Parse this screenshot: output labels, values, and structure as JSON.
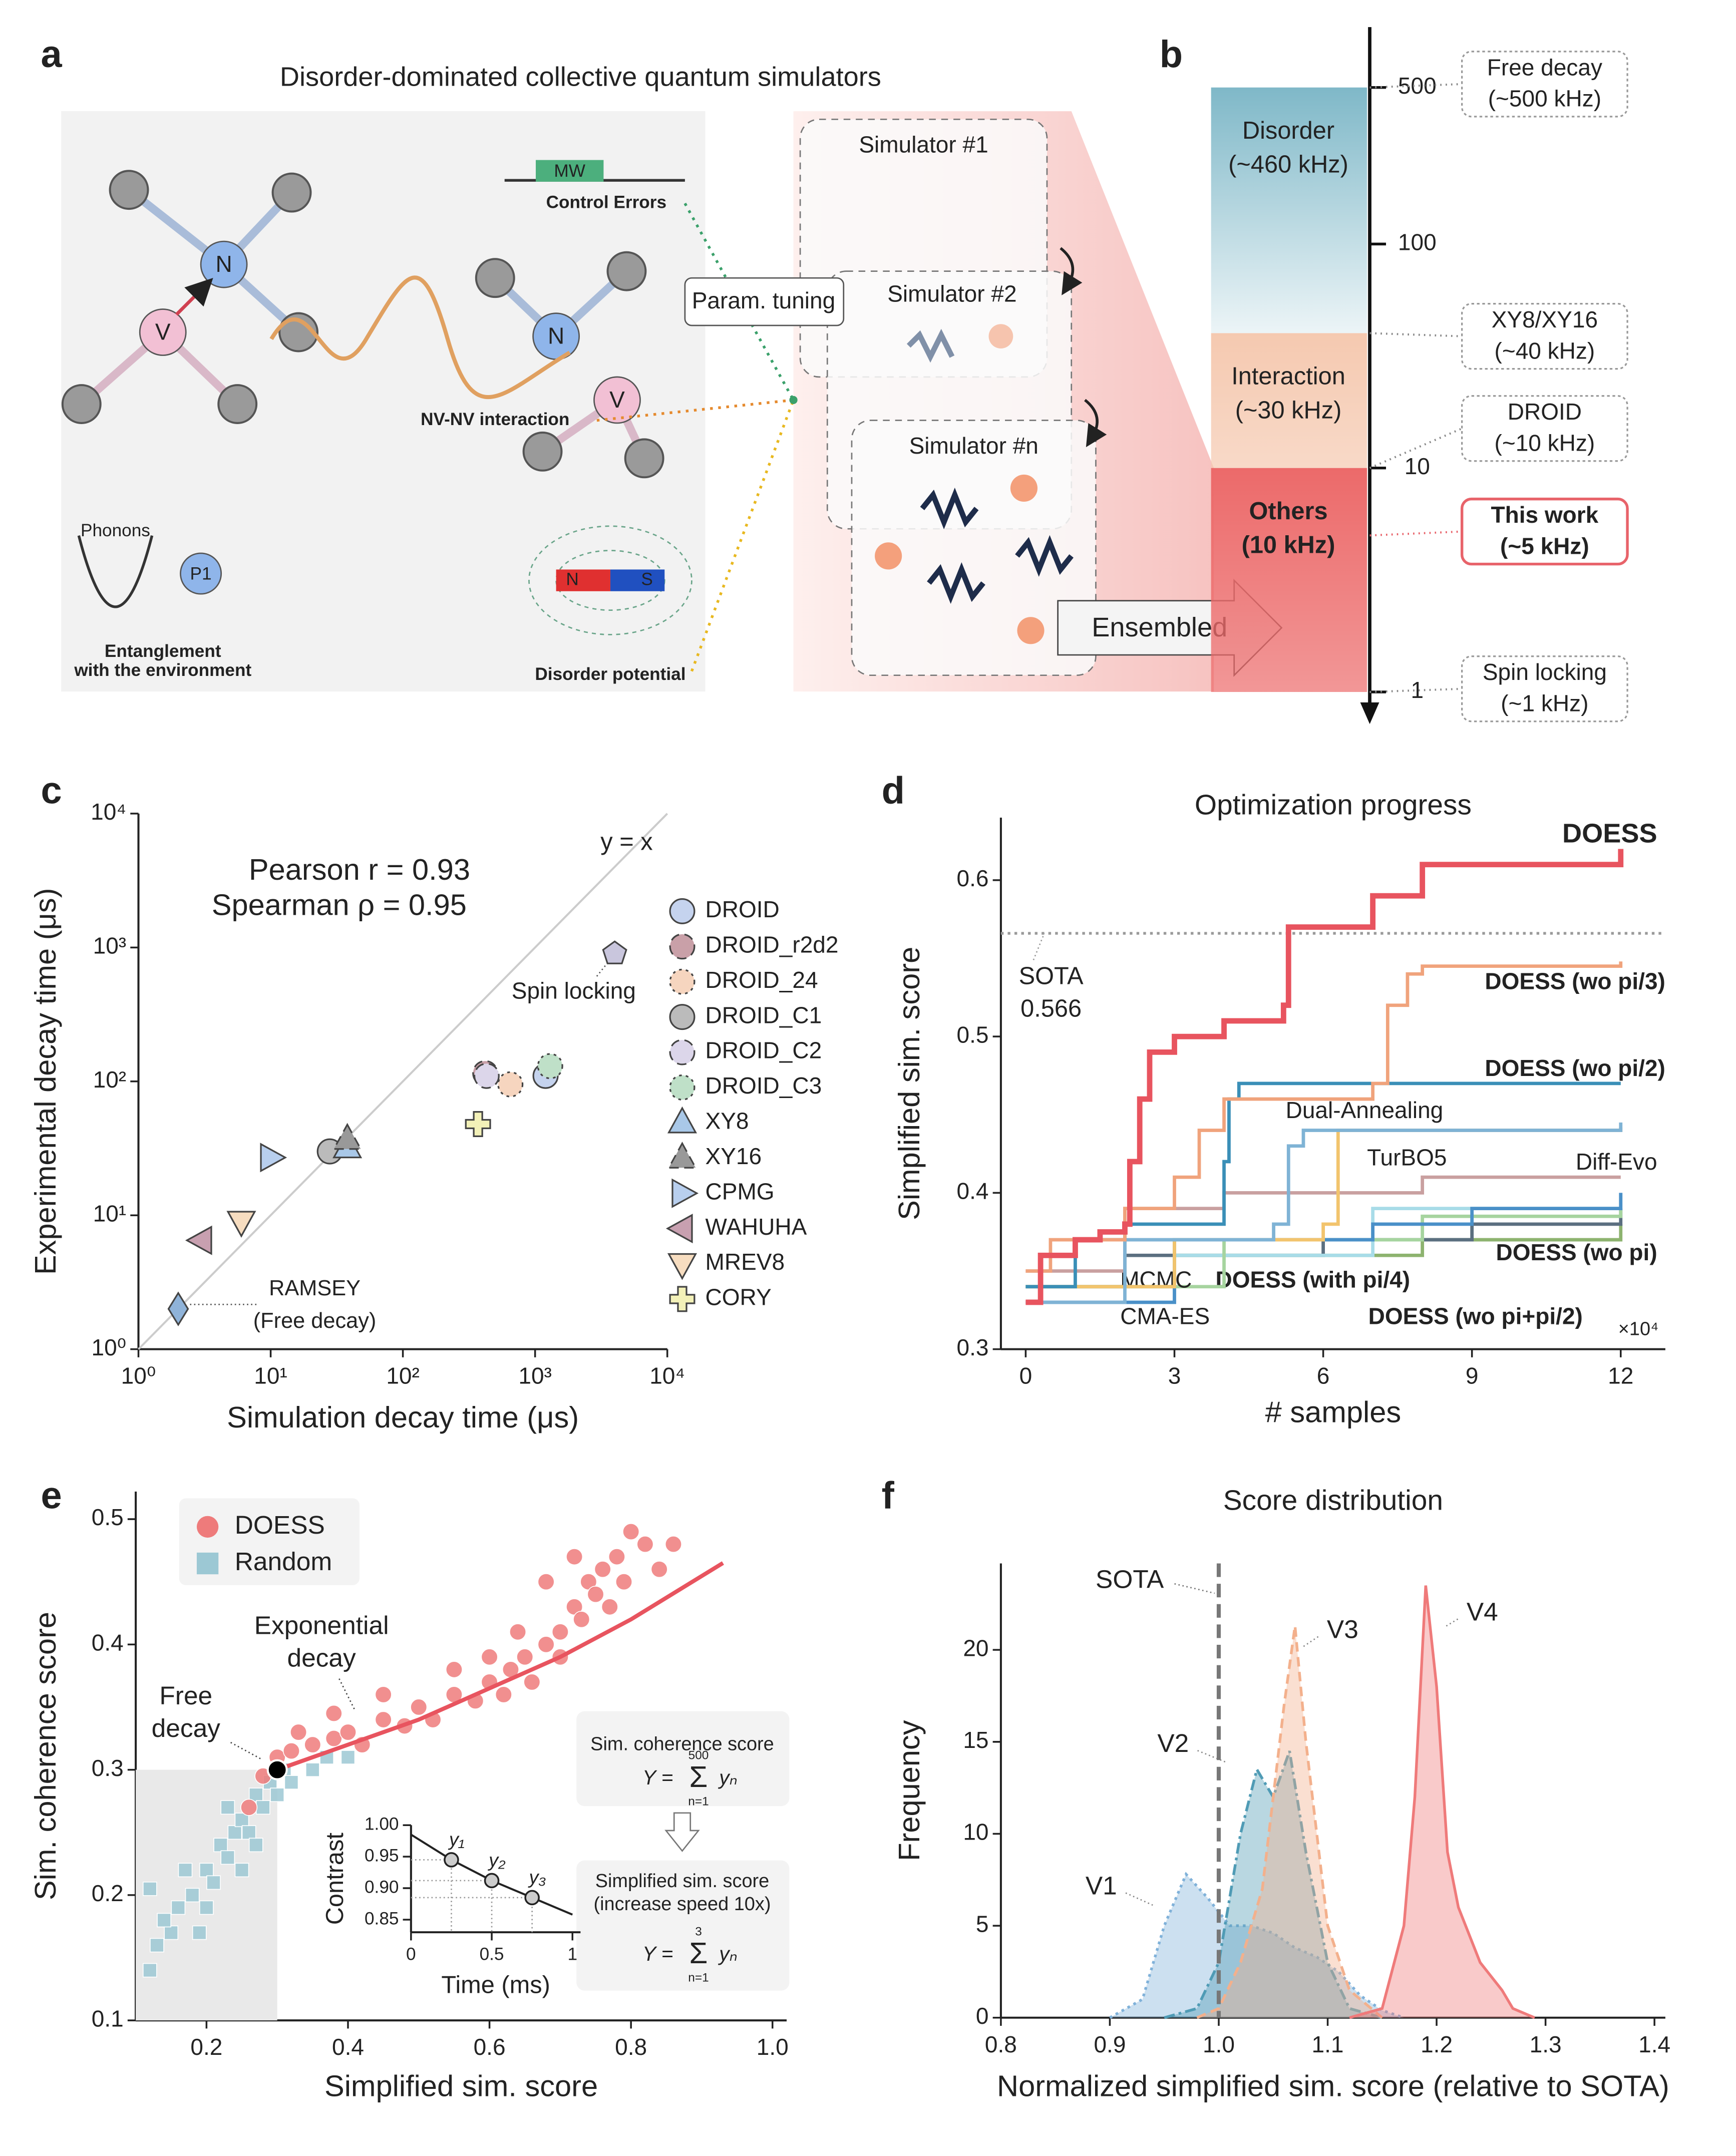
{
  "figure_labels": [
    "a",
    "b",
    "c",
    "d",
    "e",
    "f"
  ],
  "diagram": {
    "title": "Disorder-dominated collective quantum simulators",
    "mw": "MW",
    "control_errors": "Control Errors",
    "nv": [
      "N",
      "V",
      "N",
      "V"
    ],
    "nv_interaction": "NV-NV interaction",
    "phonons": "Phonons",
    "p1": "P1",
    "entanglement": [
      "Entanglement",
      "with the environment"
    ],
    "magnet": [
      "N",
      "S"
    ],
    "disorder_potential": "Disorder potential",
    "param_tuning": "Param. tuning",
    "simulators": [
      "Simulator #1",
      "Simulator #2",
      "Simulator #n"
    ],
    "ensembled": "Ensembled"
  },
  "chart_data": [
    {
      "type": "scale",
      "log_y": true,
      "ylim": [
        0.76,
        930
      ],
      "yticks": [
        1,
        10,
        100,
        500
      ],
      "bands": [
        {
          "name": "Disorder",
          "note": "(~460 kHz)",
          "range": [
            40,
            500
          ],
          "color": "#7fb8c8"
        },
        {
          "name": "Interaction",
          "note": "(~30 kHz)",
          "range": [
            10,
            40
          ],
          "color": "#f5c9b0"
        },
        {
          "name": "Others",
          "note": "(10 kHz)",
          "range": [
            1,
            10
          ],
          "color": "#ec6a6a"
        }
      ],
      "callouts": [
        {
          "name": "Free decay",
          "note": "(~500 kHz)",
          "value": 500
        },
        {
          "name": "XY8/XY16",
          "note": "(~40 kHz)",
          "value": 40
        },
        {
          "name": "DROID",
          "note": "(~10 kHz)",
          "value": 10
        },
        {
          "name": "This work",
          "note": "(~5 kHz)",
          "value": 5,
          "color": "#e8636a"
        },
        {
          "name": "Spin locking",
          "note": "(~1 kHz)",
          "value": 1
        }
      ]
    },
    {
      "type": "scatter",
      "log_x": true,
      "log_y": true,
      "xlim": [
        1,
        10000
      ],
      "ylim": [
        1,
        10000
      ],
      "xticks": [
        {
          "value": 1,
          "label": "10⁰"
        },
        {
          "value": 10,
          "label": "10¹"
        },
        {
          "value": 100,
          "label": "10²"
        },
        {
          "value": 1000,
          "label": "10³"
        },
        {
          "value": 10000,
          "label": "10⁴"
        }
      ],
      "yticks": [
        {
          "value": 1,
          "label": "10⁰"
        },
        {
          "value": 10,
          "label": "10¹"
        },
        {
          "value": 100,
          "label": "10²"
        },
        {
          "value": 1000,
          "label": "10³"
        },
        {
          "value": 10000,
          "label": "10⁴"
        }
      ],
      "xlabel": "Simulation decay time (μs)",
      "ylabel": "Experimental decay time (μs)",
      "annotations": [
        "Pearson r = 0.93",
        "Spearman ρ = 0.95",
        "y = x",
        "Spin locking",
        "RAMSEY",
        "(Free decay)"
      ],
      "series": [
        {
          "name": "DROID",
          "marker": "circle",
          "color": "#c5d3ee",
          "x": [
            1200
          ],
          "values": [
            110
          ]
        },
        {
          "name": "DROID_r2d2",
          "marker": "circle",
          "color": "#c9a0a8",
          "line_style": "dashed",
          "x": [
            420
          ],
          "values": [
            115
          ]
        },
        {
          "name": "DROID_24",
          "marker": "circle",
          "color": "#f6d5bf",
          "line_style": "dotted",
          "x": [
            650
          ],
          "values": [
            95
          ]
        },
        {
          "name": "DROID_C1",
          "marker": "circle",
          "color": "#bbbbbb",
          "x": [
            28
          ],
          "values": [
            30
          ]
        },
        {
          "name": "DROID_C2",
          "marker": "circle",
          "color": "#dcd6ea",
          "line_style": "dashed",
          "x": [
            430
          ],
          "values": [
            110
          ]
        },
        {
          "name": "DROID_C3",
          "marker": "circle",
          "color": "#bfe0c8",
          "line_style": "dotted",
          "x": [
            1300
          ],
          "values": [
            130
          ]
        },
        {
          "name": "XY8",
          "marker": "triangle-up",
          "color": "#a9c8e8",
          "x": [
            38
          ],
          "values": [
            32
          ]
        },
        {
          "name": "XY16",
          "marker": "triangle-up",
          "color": "#999999",
          "line_style": "dashed",
          "x": [
            38
          ],
          "values": [
            37
          ]
        },
        {
          "name": "CPMG",
          "marker": "triangle-right",
          "color": "#b8cfee",
          "x": [
            10
          ],
          "values": [
            27
          ]
        },
        {
          "name": "WAHUHA",
          "marker": "triangle-left",
          "color": "#c8a0b0",
          "x": [
            3
          ],
          "values": [
            6.5
          ]
        },
        {
          "name": "MREV8",
          "marker": "triangle-down",
          "color": "#f7ddc0",
          "x": [
            6
          ],
          "values": [
            9
          ]
        },
        {
          "name": "CORY",
          "marker": "plus",
          "color": "#f3f1b8",
          "x": [
            370
          ],
          "values": [
            48
          ]
        },
        {
          "marker": "diamond",
          "color": "#8fb3d9",
          "x": [
            2
          ],
          "values": [
            2
          ]
        },
        {
          "marker": "pentagon",
          "color": "#c9c6dd",
          "x": [
            4000
          ],
          "values": [
            900
          ]
        }
      ]
    },
    {
      "type": "line",
      "step": true,
      "title": "Optimization progress",
      "xlabel": "# samples",
      "ylabel": "Simplified sim. score",
      "x_multiplier": "×10⁴",
      "xlim": [
        -0.5,
        12.9
      ],
      "ylim": [
        0.3,
        0.64
      ],
      "xticks": [
        0,
        3,
        6,
        9,
        12
      ],
      "yticks": [
        0.3,
        0.4,
        0.5,
        0.6
      ],
      "reference": {
        "name": "SOTA",
        "value": 0.566
      },
      "series": [
        {
          "name": "DOESS",
          "color": "#e8545f",
          "line_width": 4,
          "x": [
            0,
            0.3,
            1,
            1.5,
            2,
            2.1,
            2.3,
            2.5,
            3,
            4,
            5.2,
            5.3,
            6,
            7,
            8,
            11.8,
            12
          ],
          "values": [
            0.33,
            0.36,
            0.37,
            0.375,
            0.38,
            0.42,
            0.46,
            0.49,
            0.5,
            0.51,
            0.52,
            0.57,
            0.57,
            0.59,
            0.61,
            0.61,
            0.62
          ]
        },
        {
          "name": "DOESS (wo pi/3)",
          "color": "#f0a37c",
          "x": [
            0,
            0.5,
            2,
            3,
            3.5,
            4,
            6,
            7,
            7.3,
            7.7,
            8,
            12
          ],
          "values": [
            0.35,
            0.37,
            0.39,
            0.41,
            0.44,
            0.46,
            0.46,
            0.47,
            0.52,
            0.54,
            0.545,
            0.548
          ]
        },
        {
          "name": "DOESS (wo pi/2)",
          "color": "#3a8fb7",
          "x": [
            0,
            1,
            2,
            3.5,
            4,
            4.1,
            4.3,
            12
          ],
          "values": [
            0.34,
            0.37,
            0.38,
            0.38,
            0.42,
            0.46,
            0.47,
            0.47
          ]
        },
        {
          "name": "Dual-Annealing",
          "color": "#7fb3d5",
          "x": [
            0,
            2,
            5,
            5.3,
            5.6,
            12
          ],
          "values": [
            0.33,
            0.37,
            0.38,
            0.43,
            0.44,
            0.445
          ]
        },
        {
          "name": "TurBO5",
          "color": "#f2c46d",
          "x": [
            0,
            3,
            6,
            6.3,
            12
          ],
          "values": [
            0.34,
            0.37,
            0.38,
            0.44,
            0.442
          ]
        },
        {
          "name": "Diff-Evo",
          "color": "#c9a0a0",
          "x": [
            0,
            2,
            4,
            8,
            12
          ],
          "values": [
            0.35,
            0.39,
            0.4,
            0.41,
            0.41
          ]
        },
        {
          "name": "DOESS (wo pi)",
          "color": "#4a90c8",
          "x": [
            0,
            3,
            7,
            9,
            12
          ],
          "values": [
            0.33,
            0.37,
            0.38,
            0.39,
            0.4
          ]
        },
        {
          "name": "MCMC",
          "color": "#a6d49f",
          "x": [
            0,
            4,
            8,
            12
          ],
          "values": [
            0.34,
            0.37,
            0.385,
            0.39
          ]
        },
        {
          "name": "CMA-ES",
          "color": "#a8dce8",
          "x": [
            0,
            3,
            7,
            12
          ],
          "values": [
            0.33,
            0.36,
            0.39,
            0.4
          ]
        },
        {
          "name": "DOESS (with pi/4)",
          "color": "#5b6f80",
          "x": [
            0,
            2,
            6,
            9,
            12
          ],
          "values": [
            0.34,
            0.36,
            0.37,
            0.38,
            0.39
          ]
        },
        {
          "name": "DOESS (wo pi+pi/2)",
          "color": "#8db36f",
          "x": [
            0,
            3,
            8,
            12
          ],
          "values": [
            0.34,
            0.36,
            0.37,
            0.38
          ]
        }
      ]
    },
    {
      "type": "scatter",
      "xlabel": "Simplified sim. score",
      "ylabel": "Sim. coherence score",
      "xlim": [
        0.1,
        1.02
      ],
      "ylim": [
        0.1,
        0.522
      ],
      "xticks": [
        0.2,
        0.4,
        0.6,
        0.8,
        {
          "value": 1,
          "label": "1.0"
        }
      ],
      "yticks": [
        0.1,
        0.2,
        0.3,
        0.4,
        0.5
      ],
      "shaded": {
        "x": [
          0.1,
          0.3
        ],
        "y": [
          0.1,
          0.3
        ]
      },
      "series": [
        {
          "name": "Random",
          "color": "#9cc8d4",
          "marker": "square",
          "x": [
            0.12,
            0.13,
            0.15,
            0.16,
            0.18,
            0.2,
            0.21,
            0.22,
            0.23,
            0.24,
            0.25,
            0.26,
            0.27,
            0.28,
            0.29,
            0.3,
            0.31,
            0.32,
            0.35,
            0.37,
            0.4,
            0.14,
            0.17,
            0.19,
            0.23,
            0.25,
            0.27,
            0.2,
            0.12
          ],
          "values": [
            0.14,
            0.16,
            0.17,
            0.19,
            0.2,
            0.22,
            0.21,
            0.24,
            0.23,
            0.25,
            0.26,
            0.25,
            0.28,
            0.27,
            0.29,
            0.28,
            0.3,
            0.29,
            0.3,
            0.31,
            0.31,
            0.18,
            0.22,
            0.17,
            0.27,
            0.22,
            0.24,
            0.19,
            0.205
          ]
        },
        {
          "name": "DOESS",
          "color": "#ee7b7b",
          "marker": "circle",
          "x": [
            0.28,
            0.3,
            0.32,
            0.35,
            0.38,
            0.4,
            0.42,
            0.45,
            0.48,
            0.5,
            0.52,
            0.55,
            0.58,
            0.6,
            0.62,
            0.63,
            0.65,
            0.66,
            0.68,
            0.7,
            0.7,
            0.72,
            0.73,
            0.74,
            0.75,
            0.76,
            0.77,
            0.78,
            0.8,
            0.82,
            0.84,
            0.86,
            0.72,
            0.68,
            0.55,
            0.45,
            0.38,
            0.33,
            0.26,
            0.6,
            0.79,
            0.64
          ],
          "values": [
            0.295,
            0.31,
            0.315,
            0.32,
            0.325,
            0.33,
            0.32,
            0.34,
            0.335,
            0.35,
            0.34,
            0.36,
            0.355,
            0.37,
            0.36,
            0.38,
            0.39,
            0.37,
            0.4,
            0.41,
            0.39,
            0.43,
            0.42,
            0.45,
            0.44,
            0.46,
            0.43,
            0.47,
            0.49,
            0.48,
            0.46,
            0.48,
            0.47,
            0.45,
            0.38,
            0.36,
            0.345,
            0.33,
            0.27,
            0.39,
            0.45,
            0.41
          ]
        }
      ],
      "fit": {
        "color": "#e8545f",
        "x": [
          0.3,
          0.4,
          0.5,
          0.6,
          0.7,
          0.8,
          0.93
        ],
        "values": [
          0.3,
          0.32,
          0.34,
          0.365,
          0.39,
          0.42,
          0.465
        ]
      },
      "highlight": {
        "x": 0.3,
        "value": 0.3,
        "color": "#000000"
      },
      "annotations": [
        "Exponential",
        "decay",
        "Free",
        "decay"
      ],
      "formula_box": {
        "coherence": "Sim. coherence score",
        "simplified": "Simplified sim. score",
        "speedup": "(increase speed 10x)",
        "expr": "Y =",
        "sum": "Σ",
        "term": "yₙ",
        "upper": [
          "500",
          "3"
        ],
        "lower": "n=1"
      }
    },
    {
      "type": "line",
      "xlabel": "Time (ms)",
      "ylabel": "Contrast",
      "xlim": [
        0,
        1.05
      ],
      "ylim": [
        0.83,
        1.0
      ],
      "xticks": [
        0,
        0.5,
        1
      ],
      "yticks": [
        0.85,
        {
          "value": 0.9,
          "label": "0.90"
        },
        0.95,
        {
          "value": 1,
          "label": "1.00"
        }
      ],
      "series": [
        {
          "color": "#222222",
          "x": [
            0,
            0.25,
            0.5,
            0.75,
            1
          ],
          "values": [
            0.985,
            0.945,
            0.912,
            0.885,
            0.858
          ]
        }
      ],
      "points": {
        "x": [
          0.25,
          0.5,
          0.75
        ],
        "values": [
          0.945,
          0.912,
          0.885
        ],
        "labels": [
          "y₁",
          "y₂",
          "y₃"
        ]
      }
    },
    {
      "type": "area",
      "title": "Score distribution",
      "xlabel": "Normalized simplified sim. score (relative to SOTA)",
      "ylabel": "Frequency",
      "xlim": [
        0.8,
        1.41
      ],
      "ylim": [
        0,
        24.7
      ],
      "xticks": [
        0.8,
        0.9,
        {
          "value": 1,
          "label": "1.0"
        },
        1.1,
        1.2,
        1.3,
        1.4
      ],
      "yticks": [
        0,
        5,
        10,
        15,
        20
      ],
      "reference": {
        "name": "SOTA",
        "value": 1
      },
      "series": [
        {
          "name": "V1",
          "color": "#7fb1d9",
          "line_style": "dotted",
          "x": [
            0.9,
            0.93,
            0.95,
            0.97,
            0.99,
            1.01,
            1.03,
            1.05,
            1.07,
            1.09,
            1.11,
            1.13,
            1.15,
            1.17
          ],
          "values": [
            0,
            1,
            5,
            7.8,
            6.5,
            5,
            5,
            4.6,
            3.8,
            3.3,
            2.5,
            1.2,
            0.4,
            0
          ]
        },
        {
          "name": "V2",
          "color": "#4f9bb5",
          "line_style": "dashdot",
          "x": [
            0.95,
            0.98,
            1.0,
            1.02,
            1.035,
            1.05,
            1.065,
            1.08,
            1.1,
            1.12,
            1.15
          ],
          "values": [
            0,
            0.5,
            3,
            10,
            13.5,
            12,
            14.5,
            9,
            3,
            0.5,
            0
          ]
        },
        {
          "name": "V3",
          "color": "#f3b08c",
          "line_style": "dashed",
          "x": [
            0.98,
            1.0,
            1.02,
            1.04,
            1.06,
            1.07,
            1.08,
            1.1,
            1.12,
            1.15
          ],
          "values": [
            0,
            0.5,
            3,
            7,
            17,
            21.3,
            15,
            5,
            1.5,
            0
          ]
        },
        {
          "name": "V4",
          "color": "#ef7a7a",
          "x": [
            1.12,
            1.15,
            1.17,
            1.18,
            1.19,
            1.2,
            1.21,
            1.22,
            1.24,
            1.26,
            1.27,
            1.29
          ],
          "values": [
            0,
            0.5,
            5,
            12,
            23.5,
            18,
            9,
            6,
            3,
            1.5,
            0.5,
            0
          ]
        }
      ]
    }
  ]
}
